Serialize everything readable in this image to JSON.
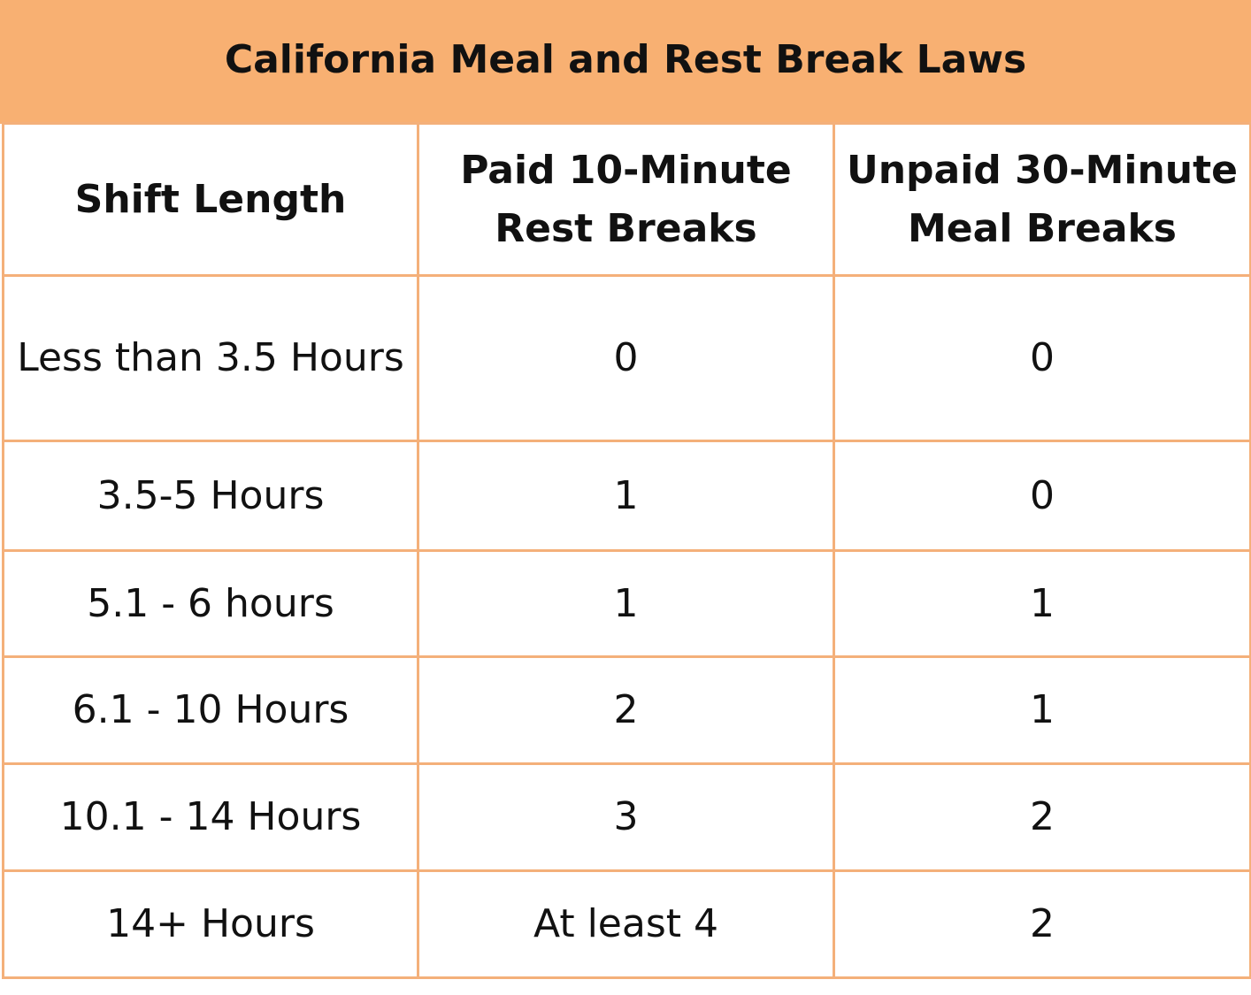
{
  "title": "California Meal and Rest Break Laws",
  "table": {
    "headers": [
      "Shift Length",
      "Paid 10-Minute Rest Breaks",
      "Unpaid 30-Minute Meal Breaks"
    ],
    "rows": [
      [
        "Less than 3.5 Hours",
        "0",
        "0"
      ],
      [
        "3.5-5 Hours",
        "1",
        "0"
      ],
      [
        "5.1 - 6 hours",
        "1",
        "1"
      ],
      [
        "6.1 - 10 Hours",
        "2",
        "1"
      ],
      [
        "10.1 - 14 Hours",
        "3",
        "2"
      ],
      [
        "14+ Hours",
        "At least 4",
        "2"
      ]
    ]
  },
  "colors": {
    "title_background": "#f8b072",
    "border": "#f4b07a",
    "text": "#111111"
  }
}
